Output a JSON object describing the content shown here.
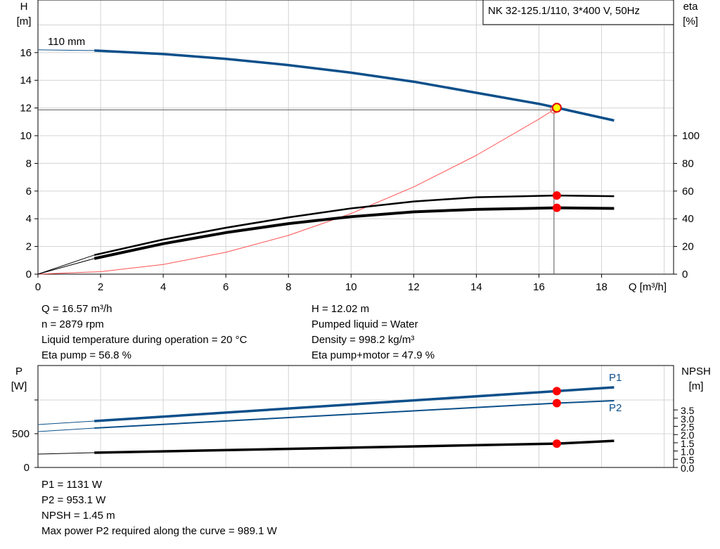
{
  "chart_data": [
    {
      "type": "line",
      "title": "NK 32-125.1/110, 3*400 V, 50Hz",
      "xlabel": "Q [m³/h]",
      "ylabel_left": [
        "H",
        "[m]"
      ],
      "ylabel_right": [
        "eta",
        "[%]"
      ],
      "xlim": [
        0,
        20.3
      ],
      "ylim_left": [
        0,
        19.8
      ],
      "ylim_right": [
        0,
        198
      ],
      "x_ticks": [
        "0",
        "2",
        "4",
        "6",
        "8",
        "10",
        "12",
        "14",
        "16",
        "18"
      ],
      "y_ticks_left": [
        "0",
        "2",
        "4",
        "6",
        "8",
        "10",
        "12",
        "14",
        "16"
      ],
      "y_ticks_right": [
        "0",
        "20",
        "40",
        "60",
        "80",
        "100"
      ],
      "grid": true,
      "curve_label": "110 mm",
      "series": [
        {
          "key": "head",
          "axis": "left",
          "color": "#0b4f8a",
          "x": [
            1.8,
            4,
            6,
            8,
            10,
            12,
            14,
            16,
            16.57,
            18.4
          ],
          "y": [
            16.15,
            15.9,
            15.55,
            15.1,
            14.55,
            13.9,
            13.1,
            12.3,
            12.02,
            11.1
          ],
          "extrapolated": {
            "x": [
              0,
              1.8
            ],
            "y": [
              16.2,
              16.15
            ]
          }
        },
        {
          "key": "system",
          "axis": "left",
          "color": "#ff5050",
          "x": [
            0,
            2,
            4,
            6,
            8,
            10,
            12,
            14,
            16,
            16.57
          ],
          "y": [
            0,
            0.18,
            0.7,
            1.58,
            2.8,
            4.38,
            6.3,
            8.58,
            11.2,
            12.02
          ]
        },
        {
          "key": "eta_pump",
          "axis": "right",
          "color": "#000000",
          "x": [
            1.8,
            4,
            6,
            8,
            10,
            12,
            14,
            16.57,
            18.4
          ],
          "y": [
            13.8,
            25,
            33.5,
            41,
            47.5,
            52.5,
            55.5,
            56.8,
            56.3
          ],
          "extrapolated": {
            "x": [
              0,
              1.8
            ],
            "y": [
              0,
              13.8
            ]
          }
        },
        {
          "key": "eta_pump_motor",
          "axis": "right",
          "color": "#000000",
          "x": [
            1.8,
            4,
            6,
            8,
            10,
            12,
            14,
            16.57,
            18.4
          ],
          "y": [
            11.3,
            22,
            30,
            36.5,
            41.5,
            45,
            46.8,
            47.9,
            47.5
          ],
          "extrapolated": {
            "x": [
              0,
              1.8
            ],
            "y": [
              0,
              11.3
            ]
          }
        }
      ],
      "duty_point": {
        "Q": 16.57,
        "H": 12.02,
        "eta_pump": 56.8,
        "eta_pump_motor": 47.9
      }
    },
    {
      "type": "line",
      "xlim": [
        0,
        20.3
      ],
      "ylabel_left": [
        "P",
        "[W]"
      ],
      "ylabel_right": [
        "NPSH",
        "[m]"
      ],
      "ylim_left": [
        0,
        1510
      ],
      "ylim_right": [
        0,
        6.2
      ],
      "y_ticks_left": [
        "0",
        "500"
      ],
      "y_ticks_right": [
        "0.0",
        "0.5",
        "1.0",
        "1.5",
        "2.0",
        "2.5",
        "3.0",
        "3.5"
      ],
      "grid": true,
      "series": [
        {
          "key": "P1",
          "name": "P1",
          "axis": "left",
          "color": "#0b4f8a",
          "x": [
            1.8,
            16.57,
            18.4
          ],
          "y": [
            687,
            1131,
            1187
          ],
          "extrapolated": {
            "x": [
              0,
              1.8
            ],
            "y": [
              635,
              687
            ]
          }
        },
        {
          "key": "P2",
          "name": "P2",
          "axis": "left",
          "color": "#0b4f8a",
          "x": [
            1.8,
            16.57,
            18.4
          ],
          "y": [
            583,
            953.1,
            989.1
          ],
          "extrapolated": {
            "x": [
              0,
              1.8
            ],
            "y": [
              531,
              583
            ]
          }
        },
        {
          "key": "NPSH",
          "axis": "right",
          "color": "#000000",
          "x": [
            1.8,
            16.57,
            18.4
          ],
          "y": [
            0.9,
            1.45,
            1.62
          ],
          "extrapolated": {
            "x": [
              0,
              1.8
            ],
            "y": [
              0.81,
              0.9
            ]
          }
        }
      ]
    }
  ],
  "info_top": {
    "left": [
      "Q = 16.57 m³/h",
      "n = 2879 rpm",
      "Liquid temperature during operation = 20 °C",
      "Eta pump = 56.8 %"
    ],
    "right": [
      "H = 12.02 m",
      "Pumped liquid = Water",
      "Density = 998.2 kg/m³",
      "Eta pump+motor = 47.9 %"
    ]
  },
  "info_bottom": [
    "P1 = 1131 W",
    "P2 = 953.1 W",
    "NPSH = 1.45 m",
    "Max power P2 required along the curve = 989.1 W"
  ]
}
